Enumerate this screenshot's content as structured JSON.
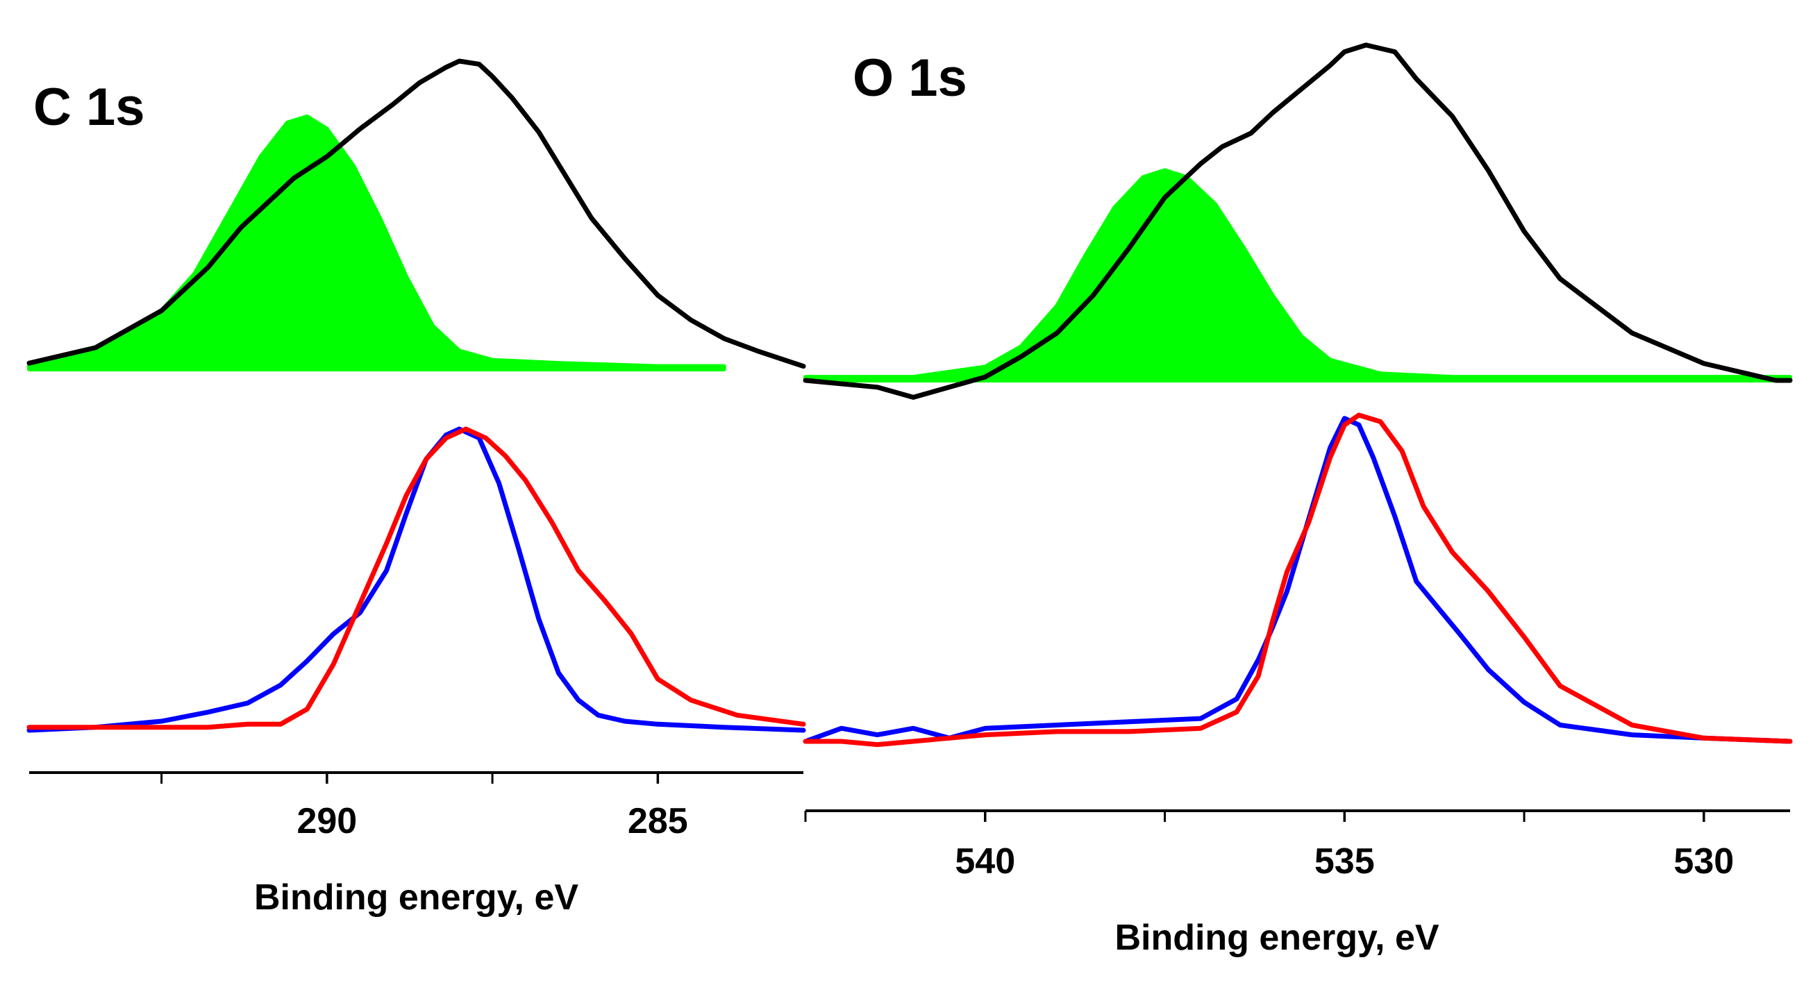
{
  "chart_data": [
    {
      "type": "line",
      "panel": "C 1s",
      "title": "C 1s",
      "xlabel": "Binding energy, eV",
      "ylabel": "",
      "xlim": [
        294.5,
        282.8
      ],
      "x_reversed": true,
      "major_ticks": [
        290,
        285
      ],
      "tick_labels": [
        "290",
        "285"
      ],
      "minor_ticks": [
        292.5,
        287.5,
        282.5
      ],
      "grid": false,
      "legend": "none",
      "series": [
        {
          "name": "upper spectrum (black)",
          "color": "#000000",
          "style": "line",
          "x": [
            294.5,
            293.5,
            292.5,
            291.8,
            291.3,
            290.8,
            290.5,
            290.0,
            289.5,
            289.0,
            288.6,
            288.2,
            288.0,
            287.7,
            287.5,
            287.2,
            286.8,
            286.4,
            286.0,
            285.5,
            285.0,
            284.5,
            284.0,
            283.5,
            282.8
          ],
          "y": [
            0.02,
            0.07,
            0.19,
            0.33,
            0.46,
            0.56,
            0.62,
            0.69,
            0.78,
            0.86,
            0.93,
            0.98,
            1.0,
            0.99,
            0.95,
            0.88,
            0.77,
            0.63,
            0.49,
            0.36,
            0.24,
            0.16,
            0.1,
            0.06,
            0.01
          ]
        },
        {
          "name": "fitted component (green fill)",
          "color": "#00ff00",
          "style": "filled",
          "x": [
            294.5,
            293.5,
            292.5,
            292.0,
            291.5,
            291.0,
            290.6,
            290.3,
            290.0,
            289.6,
            289.2,
            288.8,
            288.4,
            288.0,
            287.5,
            286.5,
            285.0,
            284.0
          ],
          "y": [
            0.02,
            0.07,
            0.19,
            0.31,
            0.5,
            0.69,
            0.8,
            0.82,
            0.78,
            0.66,
            0.49,
            0.3,
            0.14,
            0.06,
            0.03,
            0.02,
            0.01,
            0.01
          ]
        },
        {
          "name": "lower spectrum (blue)",
          "color": "#0000ff",
          "style": "line",
          "x": [
            294.5,
            293.5,
            292.5,
            291.8,
            291.2,
            290.7,
            290.3,
            289.9,
            289.5,
            289.1,
            288.8,
            288.5,
            288.2,
            288.0,
            287.7,
            287.4,
            287.1,
            286.8,
            286.5,
            286.2,
            285.9,
            285.5,
            285.0,
            284.0,
            282.8
          ],
          "y": [
            0.0,
            0.01,
            0.03,
            0.06,
            0.09,
            0.15,
            0.23,
            0.32,
            0.39,
            0.53,
            0.72,
            0.9,
            0.98,
            1.0,
            0.97,
            0.82,
            0.6,
            0.37,
            0.19,
            0.1,
            0.05,
            0.03,
            0.02,
            0.01,
            0.0
          ]
        },
        {
          "name": "lower spectrum (red)",
          "color": "#ff0000",
          "style": "line",
          "x": [
            294.5,
            293.5,
            292.5,
            291.8,
            291.2,
            290.7,
            290.3,
            289.9,
            289.5,
            289.1,
            288.8,
            288.5,
            288.2,
            287.9,
            287.6,
            287.3,
            287.0,
            286.6,
            286.2,
            285.8,
            285.4,
            285.0,
            284.5,
            283.8,
            282.8
          ],
          "y": [
            0.01,
            0.01,
            0.01,
            0.01,
            0.02,
            0.02,
            0.07,
            0.22,
            0.42,
            0.62,
            0.78,
            0.9,
            0.97,
            1.0,
            0.97,
            0.91,
            0.83,
            0.69,
            0.53,
            0.43,
            0.32,
            0.17,
            0.1,
            0.05,
            0.02
          ]
        }
      ]
    },
    {
      "type": "line",
      "panel": "O 1s",
      "title": "O 1s",
      "xlabel": "Binding energy, eV",
      "ylabel": "",
      "xlim": [
        542.5,
        528.8
      ],
      "x_reversed": true,
      "major_ticks": [
        540,
        535,
        530
      ],
      "tick_labels": [
        "540",
        "535",
        "530"
      ],
      "minor_ticks": [
        542.5,
        537.5,
        532.5
      ],
      "grid": false,
      "legend": "none",
      "series": [
        {
          "name": "upper spectrum (black)",
          "color": "#000000",
          "style": "line",
          "x": [
            542.5,
            541.5,
            541.0,
            540.5,
            540.0,
            539.5,
            539.0,
            538.5,
            538.0,
            537.5,
            537.0,
            536.7,
            536.3,
            536.0,
            535.6,
            535.2,
            535.0,
            534.7,
            534.3,
            534.0,
            533.5,
            533.0,
            532.5,
            532.0,
            531.0,
            530.0,
            529.0,
            528.8
          ],
          "y": [
            0.0,
            -0.02,
            -0.05,
            -0.02,
            0.01,
            0.07,
            0.14,
            0.25,
            0.39,
            0.54,
            0.64,
            0.69,
            0.73,
            0.79,
            0.86,
            0.93,
            0.97,
            0.99,
            0.97,
            0.89,
            0.78,
            0.62,
            0.44,
            0.3,
            0.14,
            0.05,
            0.0,
            0.0
          ]
        },
        {
          "name": "fitted component (green fill)",
          "color": "#00ff00",
          "style": "filled",
          "x": [
            542.5,
            541.0,
            540.0,
            539.5,
            539.0,
            538.6,
            538.2,
            537.8,
            537.5,
            537.2,
            536.8,
            536.4,
            536.0,
            535.6,
            535.2,
            534.5,
            533.5,
            532.0,
            530.0,
            528.8
          ],
          "y": [
            0.01,
            0.01,
            0.04,
            0.1,
            0.22,
            0.37,
            0.51,
            0.6,
            0.62,
            0.6,
            0.52,
            0.39,
            0.25,
            0.13,
            0.06,
            0.02,
            0.01,
            0.01,
            0.01,
            0.01
          ]
        },
        {
          "name": "lower spectrum (blue)",
          "color": "#0000ff",
          "style": "line",
          "x": [
            542.5,
            542.0,
            541.5,
            541.0,
            540.5,
            540.0,
            539.0,
            538.0,
            537.0,
            536.5,
            536.2,
            536.0,
            535.8,
            535.5,
            535.2,
            535.0,
            534.8,
            534.6,
            534.3,
            534.0,
            533.7,
            533.4,
            533.0,
            532.5,
            532.0,
            531.0,
            530.0,
            528.8
          ],
          "y": [
            0.0,
            0.04,
            0.02,
            0.04,
            0.01,
            0.04,
            0.05,
            0.06,
            0.07,
            0.13,
            0.25,
            0.35,
            0.46,
            0.68,
            0.9,
            0.99,
            0.97,
            0.87,
            0.69,
            0.49,
            0.41,
            0.33,
            0.22,
            0.12,
            0.05,
            0.02,
            0.01,
            0.0
          ]
        },
        {
          "name": "lower spectrum (red)",
          "color": "#ff0000",
          "style": "line",
          "x": [
            542.5,
            542.0,
            541.5,
            541.0,
            540.5,
            540.0,
            539.0,
            538.0,
            537.0,
            536.5,
            536.2,
            536.0,
            535.8,
            535.5,
            535.2,
            535.0,
            534.8,
            534.5,
            534.2,
            533.9,
            533.5,
            533.0,
            532.5,
            532.0,
            531.0,
            530.0,
            528.8
          ],
          "y": [
            0.0,
            0.0,
            -0.01,
            0.0,
            0.01,
            0.02,
            0.03,
            0.03,
            0.04,
            0.09,
            0.2,
            0.37,
            0.52,
            0.67,
            0.87,
            0.97,
            1.0,
            0.98,
            0.89,
            0.72,
            0.58,
            0.46,
            0.32,
            0.17,
            0.05,
            0.01,
            0.0
          ]
        }
      ]
    }
  ]
}
